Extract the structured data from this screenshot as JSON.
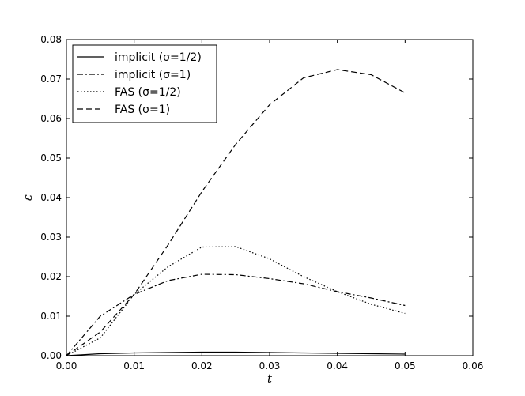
{
  "chart_data": {
    "type": "line",
    "title": "",
    "xlabel": "t",
    "ylabel": "ε",
    "xlim": [
      0,
      0.06
    ],
    "ylim": [
      0,
      0.08
    ],
    "xticks": [
      "0.00",
      "0.01",
      "0.02",
      "0.03",
      "0.04",
      "0.05",
      "0.06"
    ],
    "yticks": [
      "0.00",
      "0.01",
      "0.02",
      "0.03",
      "0.04",
      "0.05",
      "0.06",
      "0.07",
      "0.08"
    ],
    "grid": false,
    "legend_position": "top-left",
    "x": [
      0.0,
      0.005,
      0.01,
      0.015,
      0.02,
      0.025,
      0.03,
      0.035,
      0.04,
      0.045,
      0.05
    ],
    "series": [
      {
        "name": "implicit (σ=1/2)",
        "style": "solid",
        "values": [
          0.0,
          0.0005,
          0.0007,
          0.0008,
          0.0009,
          0.0009,
          0.0008,
          0.0007,
          0.0006,
          0.0005,
          0.0004
        ]
      },
      {
        "name": "implicit (σ=1)",
        "style": "dashdot",
        "values": [
          0.0,
          0.01,
          0.0155,
          0.019,
          0.0206,
          0.0205,
          0.0195,
          0.0182,
          0.0162,
          0.0146,
          0.0127
        ]
      },
      {
        "name": "FAS (σ=1/2)",
        "style": "dotted",
        "values": [
          0.0,
          0.0045,
          0.0155,
          0.0225,
          0.0275,
          0.0276,
          0.0245,
          0.02,
          0.0162,
          0.013,
          0.0107
        ]
      },
      {
        "name": "FAS (σ=1)",
        "style": "dashed",
        "values": [
          0.0,
          0.006,
          0.0155,
          0.028,
          0.0415,
          0.0535,
          0.0635,
          0.0703,
          0.0724,
          0.0711,
          0.0665
        ]
      }
    ]
  }
}
